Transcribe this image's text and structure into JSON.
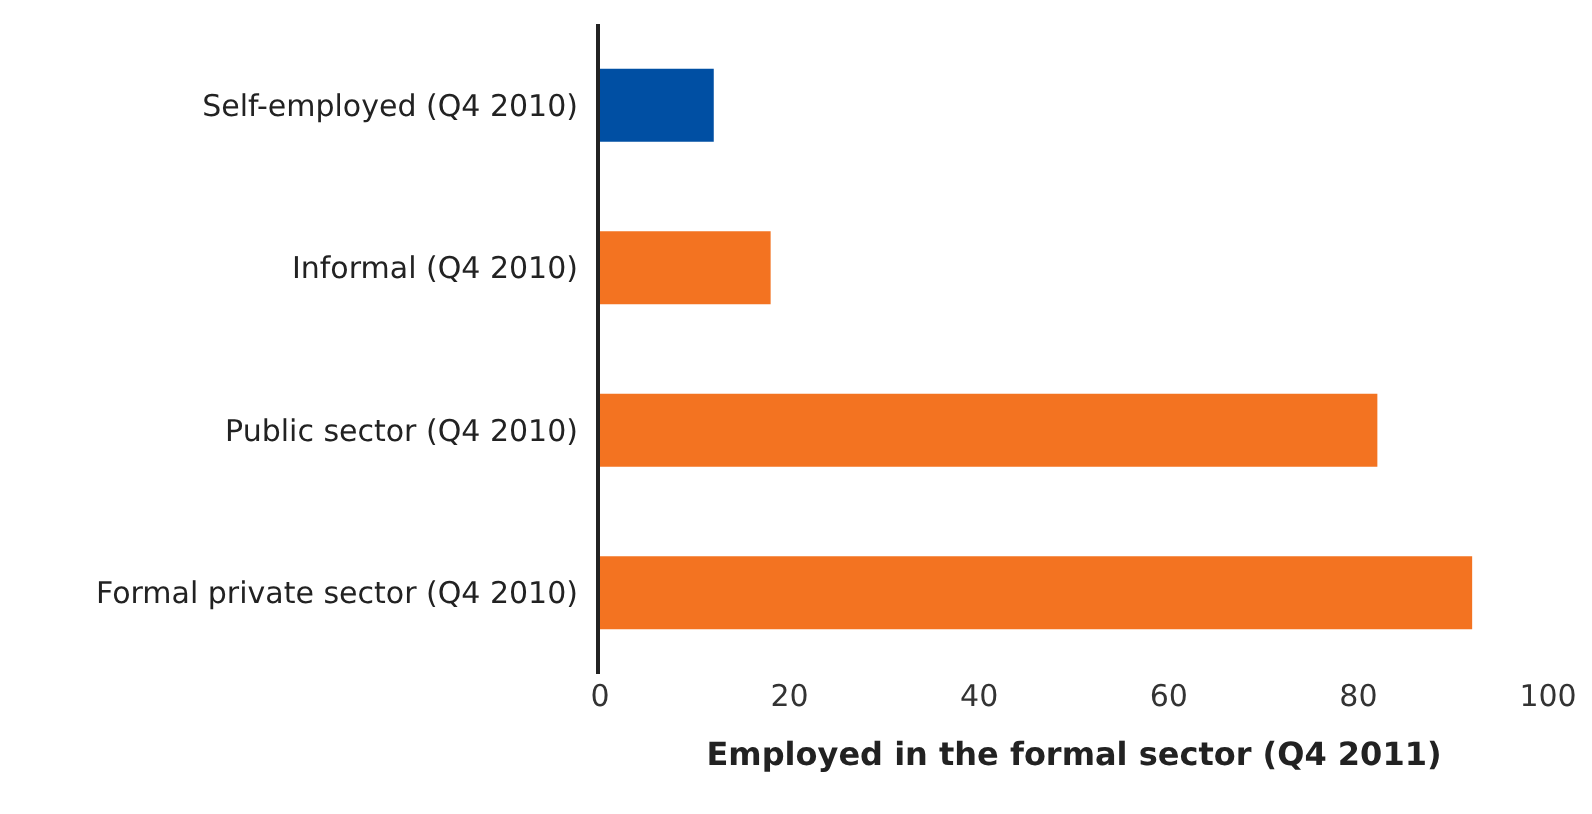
{
  "chart_data": {
    "type": "bar",
    "orientation": "horizontal",
    "xlabel": "Employed in the formal sector (Q4 2011)",
    "categories": [
      "Self-employed (Q4 2010)",
      "Informal (Q4 2010)",
      "Public sector (Q4 2010)",
      "Formal private sector (Q4 2010)"
    ],
    "values": [
      12,
      18,
      82,
      92
    ],
    "colors": [
      "#004fa3",
      "#f37321",
      "#f37321",
      "#f37321"
    ],
    "xlim": [
      0,
      100
    ],
    "xticks": [
      0,
      20,
      40,
      60,
      80,
      100
    ],
    "legend": false
  }
}
